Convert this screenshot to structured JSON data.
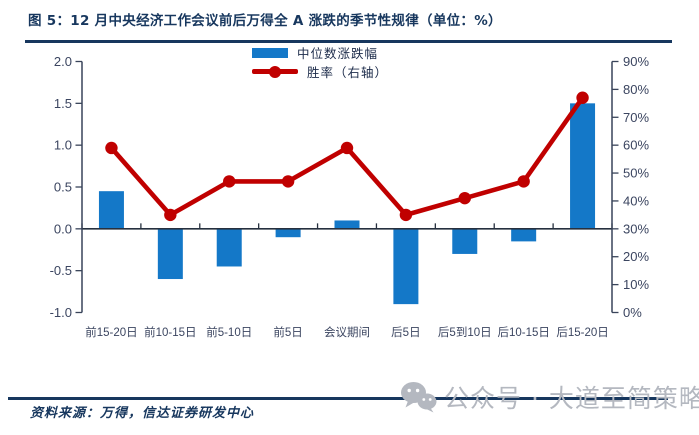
{
  "figure": {
    "title": "图 5：12 月中央经济工作会议前后万得全 A 涨跌的季节性规律（单位：%）"
  },
  "legend": {
    "median": "中位数涨跌幅",
    "win_rate": "胜率（右轴）"
  },
  "footer": {
    "source": "资料来源：万得，信达证券研发中心",
    "watermark": "公众号 · 大道至简策略研究",
    "watermark_icon": "wechat-icon"
  },
  "colors": {
    "navy": "#17375e",
    "bar_blue": "#1478c8",
    "line_red": "#c00000",
    "axis_text": "#3b4560",
    "axis_stroke": "#39445a",
    "watermark_gray": "#b4b8c0"
  },
  "chart_data": {
    "type": "combo",
    "title": "12 月中央经济工作会议前后万得全 A 涨跌的季节性规律（单位：%）",
    "categories": [
      "前15-20日",
      "前10-15日",
      "前5-10日",
      "前5日",
      "会议期间",
      "后5日",
      "后5到10日",
      "后10-15日",
      "后15-20日"
    ],
    "series": [
      {
        "name": "中位数涨跌幅",
        "type": "bar",
        "axis": "left",
        "values": [
          0.45,
          -0.6,
          -0.45,
          -0.1,
          0.1,
          -0.9,
          -0.3,
          -0.15,
          1.5
        ]
      },
      {
        "name": "胜率（右轴）",
        "type": "line",
        "axis": "right",
        "unit": "%",
        "values": [
          59,
          35,
          47,
          47,
          59,
          35,
          41,
          47,
          77
        ]
      }
    ],
    "left_axis": {
      "min": -1.0,
      "max": 2.0,
      "step": 0.5,
      "tick_labels": [
        "2.0",
        "1.5",
        "1.0",
        "0.5",
        "0.0",
        "-0.5",
        "-1.0"
      ]
    },
    "right_axis": {
      "min": 0,
      "max": 90,
      "step": 10,
      "tick_labels": [
        "90%",
        "80%",
        "70%",
        "60%",
        "50%",
        "40%",
        "30%",
        "20%",
        "10%",
        "0%"
      ]
    },
    "grid": false,
    "legend_position": "top-center"
  }
}
